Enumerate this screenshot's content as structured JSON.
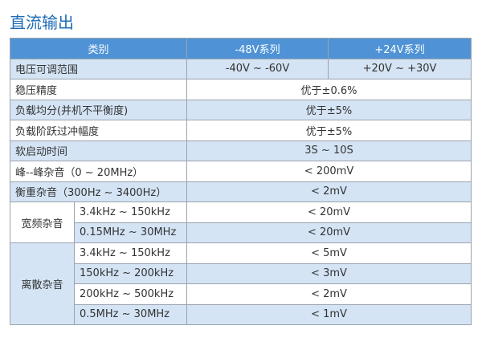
{
  "title": "直流输出",
  "table": {
    "header": [
      "类别",
      "-48V系列",
      "+24V系列"
    ],
    "rows": [
      [
        "电压可调范围",
        "-40V ~ -60V",
        "+20V ~ +30V"
      ],
      [
        "稳压精度",
        "优于±0.6%"
      ],
      [
        "负载均分(并机不平衡度)",
        "优于±5%"
      ],
      [
        "负载阶跃过冲幅度",
        "优于±5%"
      ],
      [
        "软启动时间",
        "3S ~ 10S"
      ],
      [
        "峰--峰杂音（0 ~ 20MHz）",
        "< 200mV"
      ],
      [
        "衡重杂音（300Hz ~ 3400Hz）",
        "< 2mV"
      ]
    ],
    "groups": [
      {
        "label": "宽频杂音",
        "rows": [
          [
            "3.4kHz ~ 150kHz",
            "< 20mV"
          ],
          [
            "0.15MHz ~ 30MHz",
            "< 20mV"
          ]
        ]
      },
      {
        "label": "离散杂音",
        "rows": [
          [
            "3.4kHz ~ 150kHz",
            "< 5mV"
          ],
          [
            "150kHz ~ 200kHz",
            "< 3mV"
          ],
          [
            "200kHz ~ 500kHz",
            "< 2mV"
          ],
          [
            "0.5MHz ~ 30MHz",
            "< 1mV"
          ]
        ]
      }
    ]
  }
}
